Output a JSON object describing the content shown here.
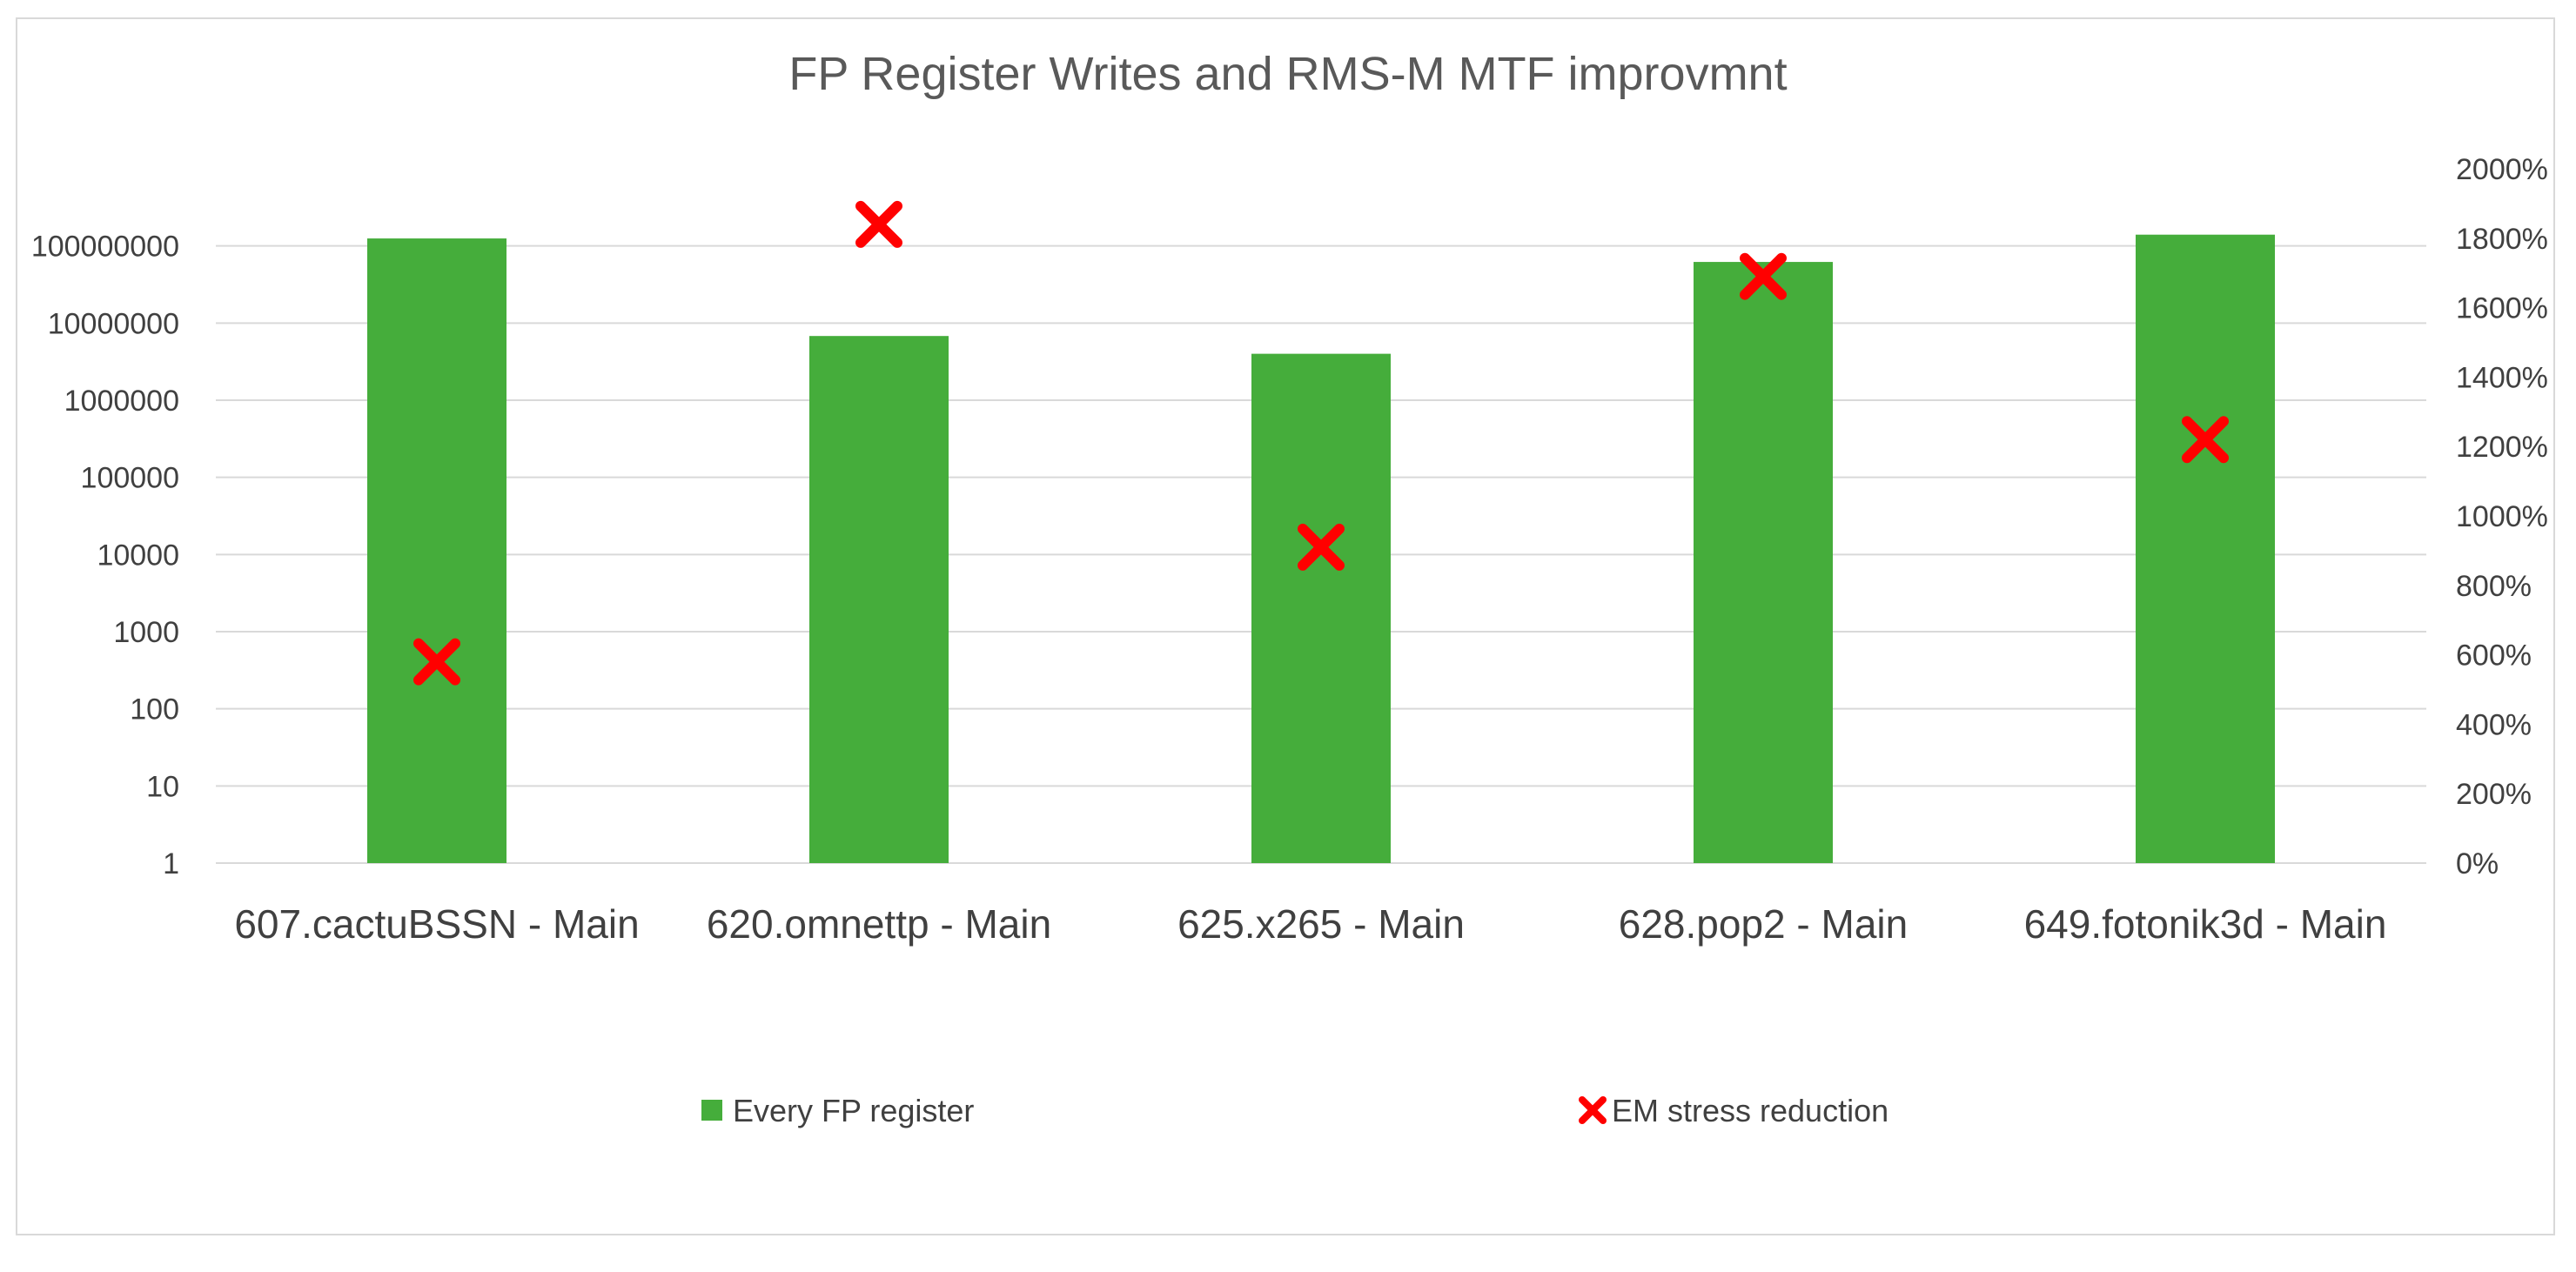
{
  "chart_data": {
    "type": "bar",
    "title": "FP Register Writes and RMS-M MTF improvmnt",
    "categories": [
      "607.cactuBSSN - Main",
      "620.omnettp - Main",
      "625.x265 - Main",
      "628.pop2 - Main",
      "649.fotonik3d - Main"
    ],
    "series": [
      {
        "name": "Every FP register",
        "kind": "bar",
        "axis": "left",
        "color": "#45ad3b",
        "values": [
          125000000,
          6800000,
          4000000,
          62000000,
          140000000
        ]
      },
      {
        "name": "EM stress reduction",
        "kind": "marker",
        "marker": "x",
        "axis": "right",
        "color": "#ff0000",
        "values": [
          5.8,
          18.4,
          9.1,
          16.9,
          12.2
        ]
      }
    ],
    "y_left": {
      "scale": "log",
      "ylim": [
        1,
        1000000000
      ],
      "tick_labels": [
        "1",
        "10",
        "100",
        "1000",
        "10000",
        "100000",
        "1000000",
        "10000000",
        "100000000"
      ]
    },
    "y_right": {
      "scale": "linear",
      "ylim": [
        0,
        20
      ],
      "tick_values": [
        0,
        2,
        4,
        6,
        8,
        10,
        12,
        14,
        16,
        18,
        20
      ],
      "tick_labels": [
        "0%",
        "200%",
        "400%",
        "600%",
        "800%",
        "1000%",
        "1200%",
        "1400%",
        "1600%",
        "1800%",
        "2000%"
      ]
    },
    "grid": true,
    "legend_position": "bottom"
  }
}
